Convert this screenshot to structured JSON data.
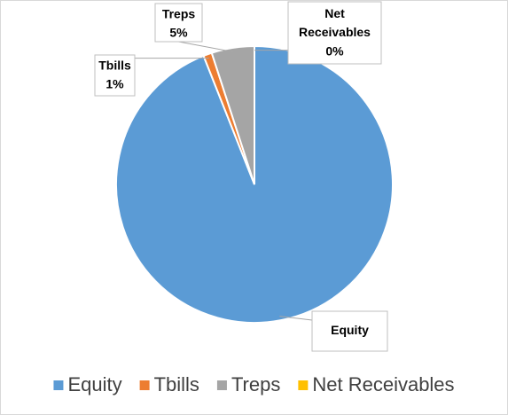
{
  "chart_data": {
    "type": "pie",
    "categories": [
      "Equity",
      "Tbills",
      "Treps",
      "Net Receivables"
    ],
    "values": [
      94,
      1,
      5,
      0
    ],
    "value_labels": [
      null,
      "1%",
      "5%",
      "0%"
    ],
    "colors": [
      "#5b9bd5",
      "#ed7d31",
      "#a5a5a5",
      "#ffc000"
    ],
    "legend": "bottom"
  }
}
